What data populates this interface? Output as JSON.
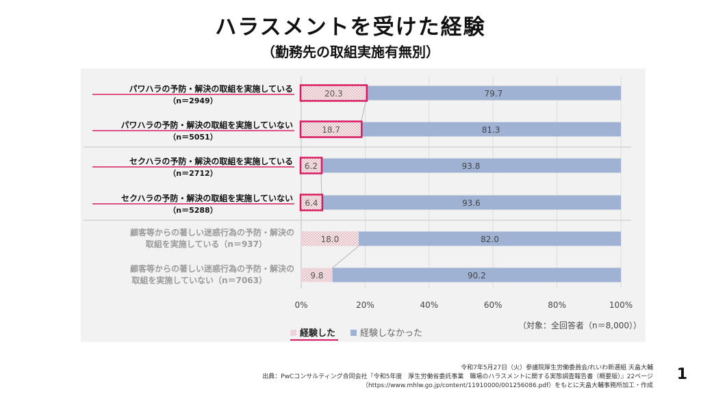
{
  "page": {
    "title": "ハラスメントを受けた経験",
    "subtitle": "（勤務先の取組実施有無別）",
    "page_number": "1",
    "footer_line1": "令和7年5月27日（火）参議院厚生労働委員会/れいわ新選組 天畠大輔",
    "footer_line2": "出典：PwCコンサルティング合同会社『令和5年度　厚生労働省委託事業　職場のハラスメントに関する実態調査報告書（概要版）』22ページ",
    "footer_line3": "（https://www.mhlw.go.jp/content/11910000/001256086.pdf）をもとに天畠大輔事務所加工・作成"
  },
  "chart_data": {
    "type": "bar",
    "orientation": "horizontal",
    "stacked": true,
    "categories": [
      {
        "label": "パワハラの予防・解決の取組を実施している",
        "n": "（n＝2949）",
        "highlight": true
      },
      {
        "label": "パワハラの予防・解決の取組を実施していない",
        "n": "（n＝5051）",
        "highlight": true
      },
      {
        "label": "セクハラの予防・解決の取組を実施している",
        "n": "（n＝2712）",
        "highlight": true
      },
      {
        "label": "セクハラの予防・解決の取組を実施していない",
        "n": "（n＝5288）",
        "highlight": true
      },
      {
        "label": "顧客等からの著しい迷惑行為の予防・解決の",
        "label2": "取組を実施している（n＝937）",
        "highlight": false
      },
      {
        "label": "顧客等からの著しい迷惑行為の予防・解決の",
        "label2": "取組を実施していない（n＝7063）",
        "highlight": false
      }
    ],
    "series": [
      {
        "name": "経験した",
        "values": [
          20.3,
          18.7,
          6.2,
          6.4,
          18.0,
          9.8
        ],
        "labels": [
          "20.3",
          "18.7",
          "6.2",
          "6.4",
          "18.0",
          "9.8"
        ]
      },
      {
        "name": "経験しなかった",
        "values": [
          79.7,
          81.3,
          93.8,
          93.6,
          82.0,
          90.2
        ],
        "labels": [
          "79.7",
          "81.3",
          "93.8",
          "93.6",
          "82.0",
          "90.2"
        ]
      }
    ],
    "xlim": [
      0,
      100
    ],
    "x_ticks": [
      "0%",
      "20%",
      "40%",
      "60%",
      "80%",
      "100%"
    ],
    "note": "（対象：全回答者（n＝8,000））",
    "legend_position": "bottom-left",
    "colors": {
      "experienced": "#f6e6ea",
      "experienced_dots": "#c9848f",
      "not_experienced": "#9fb2d4",
      "highlight": "#d81b60",
      "panel": "#f2f2f2",
      "grey_text": "#9a9a9a"
    }
  }
}
